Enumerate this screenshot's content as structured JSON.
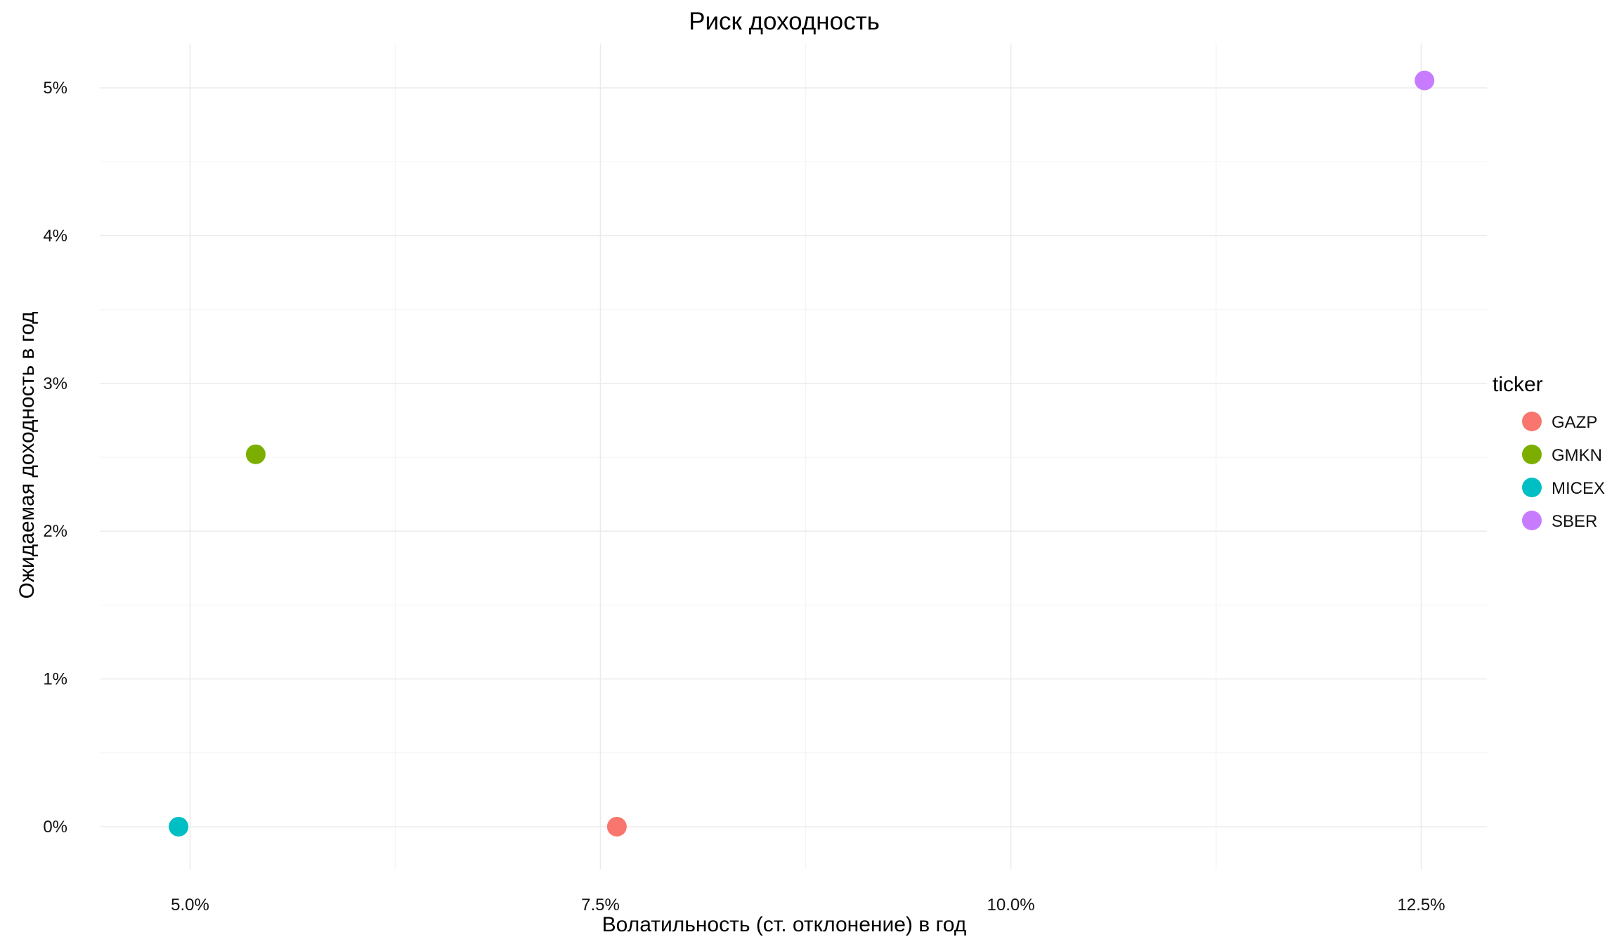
{
  "chart_data": {
    "type": "scatter",
    "title": "Риск доходность",
    "xlabel": "Волатильность (ст. отклонение) в год",
    "ylabel": "Ожидаемая доходность в год",
    "xlim": [
      4.45,
      12.9
    ],
    "ylim": [
      -0.29,
      5.3
    ],
    "x_ticks": [
      5.0,
      7.5,
      10.0,
      12.5
    ],
    "x_tick_labels": [
      "5.0%",
      "7.5%",
      "10.0%",
      "12.5%"
    ],
    "y_ticks": [
      0,
      1,
      2,
      3,
      4,
      5
    ],
    "y_tick_labels": [
      "0%",
      "1%",
      "2%",
      "3%",
      "4%",
      "5%"
    ],
    "grid": true,
    "legend": {
      "title": "ticker",
      "position": "right",
      "entries": [
        "GAZP",
        "GMKN",
        "MICEX",
        "SBER"
      ]
    },
    "series": [
      {
        "name": "GAZP",
        "color": "#F8766D",
        "x": [
          7.6
        ],
        "y": [
          0.0
        ]
      },
      {
        "name": "GMKN",
        "color": "#7CAE00",
        "x": [
          5.4
        ],
        "y": [
          2.52
        ]
      },
      {
        "name": "MICEX",
        "color": "#00BFC4",
        "x": [
          4.93
        ],
        "y": [
          0.0
        ]
      },
      {
        "name": "SBER",
        "color": "#C77CFF",
        "x": [
          12.52
        ],
        "y": [
          5.05
        ]
      }
    ]
  }
}
